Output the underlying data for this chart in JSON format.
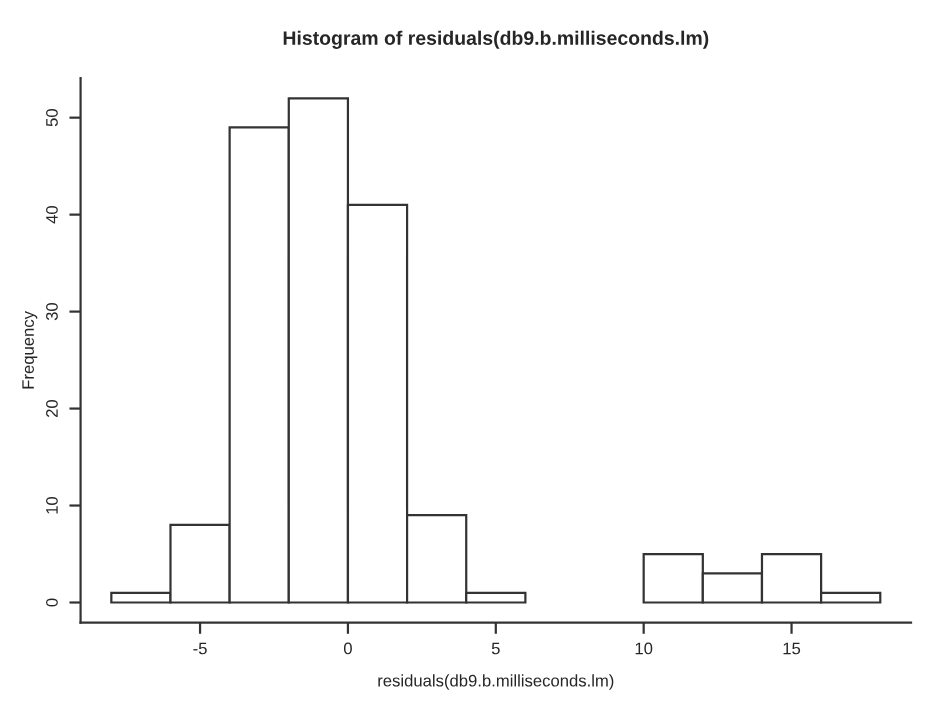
{
  "chart_data": {
    "type": "histogram",
    "title": "Histogram of residuals(db9.b.milliseconds.lm)",
    "xlabel": "residuals(db9.b.milliseconds.lm)",
    "ylabel": "Frequency",
    "bins": [
      -8,
      -6,
      -4,
      -2,
      0,
      2,
      4,
      6,
      8,
      10,
      12,
      14,
      16,
      18
    ],
    "values": [
      1,
      8,
      49,
      52,
      41,
      9,
      1,
      0,
      0,
      5,
      3,
      5,
      1
    ],
    "color": "#ffffff",
    "xlim": [
      -9.04,
      19.04
    ],
    "ylim": [
      -2.08,
      54.08
    ],
    "xticks": [
      -5,
      0,
      5,
      10,
      15
    ],
    "yticks": [
      0,
      10,
      20,
      30,
      40,
      50
    ],
    "grid": false,
    "legend": false
  }
}
